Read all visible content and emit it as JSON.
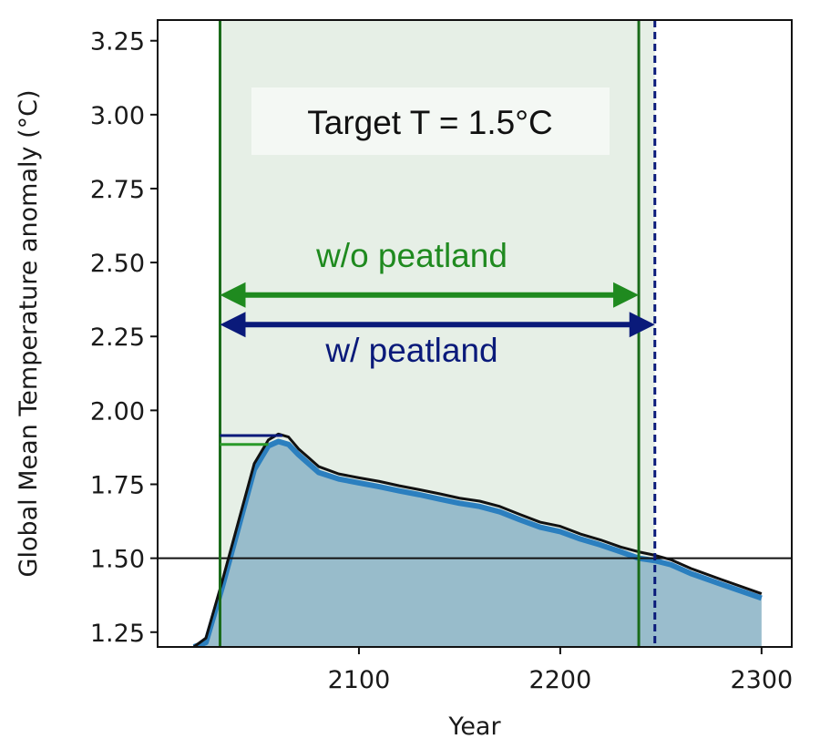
{
  "chart_data": {
    "type": "area",
    "title": "",
    "xlabel": "Year",
    "ylabel": "Global Mean Temperature anomaly (°C)",
    "xlim": [
      2000,
      2315
    ],
    "ylim": [
      1.2,
      3.32
    ],
    "xticks": [
      2100,
      2200,
      2300
    ],
    "xtick_labels": [
      "2100",
      "2200",
      "2300"
    ],
    "yticks": [
      1.25,
      1.5,
      1.75,
      2.0,
      2.25,
      2.5,
      2.75,
      3.0,
      3.25
    ],
    "ytick_labels": [
      "1.25",
      "1.50",
      "1.75",
      "2.00",
      "2.25",
      "2.50",
      "2.75",
      "3.00",
      "3.25"
    ],
    "target_line": 1.5,
    "series": [
      {
        "name": "w/ peatland",
        "color": "#111111",
        "x": [
          2018,
          2024,
          2032,
          2040,
          2048,
          2055,
          2060,
          2065,
          2070,
          2075,
          2080,
          2090,
          2100,
          2110,
          2120,
          2130,
          2140,
          2150,
          2160,
          2170,
          2180,
          2190,
          2200,
          2210,
          2220,
          2230,
          2240,
          2247,
          2255,
          2265,
          2280,
          2300
        ],
        "y": [
          1.2,
          1.23,
          1.42,
          1.62,
          1.82,
          1.9,
          1.92,
          1.91,
          1.87,
          1.84,
          1.81,
          1.785,
          1.772,
          1.76,
          1.745,
          1.732,
          1.718,
          1.703,
          1.693,
          1.675,
          1.648,
          1.622,
          1.608,
          1.582,
          1.562,
          1.538,
          1.52,
          1.51,
          1.495,
          1.465,
          1.428,
          1.38
        ]
      },
      {
        "name": "w/o peatland",
        "color": "#2b7fbf",
        "x": [
          2018,
          2024,
          2032,
          2040,
          2048,
          2055,
          2060,
          2065,
          2070,
          2075,
          2080,
          2090,
          2100,
          2110,
          2120,
          2130,
          2140,
          2150,
          2160,
          2170,
          2180,
          2190,
          2200,
          2210,
          2220,
          2230,
          2239,
          2247,
          2255,
          2265,
          2280,
          2300
        ],
        "y": [
          1.2,
          1.215,
          1.4,
          1.6,
          1.8,
          1.88,
          1.895,
          1.885,
          1.85,
          1.82,
          1.79,
          1.768,
          1.755,
          1.742,
          1.728,
          1.715,
          1.7,
          1.686,
          1.675,
          1.657,
          1.63,
          1.605,
          1.59,
          1.565,
          1.545,
          1.522,
          1.5,
          1.492,
          1.478,
          1.448,
          1.412,
          1.365
        ]
      }
    ],
    "vertical_lines": [
      {
        "name": "start",
        "x": 2031,
        "color": "#1a6b1a",
        "style": "solid"
      },
      {
        "name": "w/o peatland end",
        "x": 2239,
        "color": "#1a6b1a",
        "style": "solid"
      },
      {
        "name": "w/ peatland end",
        "x": 2247,
        "color": "#0a1a7a",
        "style": "dashed"
      }
    ],
    "shaded_region": {
      "x_start": 2031,
      "x_end": 2247,
      "color": "#e6efe6"
    },
    "peak_markers": [
      {
        "name": "w/ peatland peak",
        "x_start": 2031,
        "x_end": 2062,
        "y": 1.915,
        "color": "#0a1a7a"
      },
      {
        "name": "w/o peatland peak",
        "x_start": 2031,
        "x_end": 2055,
        "y": 1.885,
        "color": "#2a9a2a"
      }
    ],
    "annotations": {
      "box_label": "Target T = 1.5°C",
      "green_arrow": {
        "label": "w/o peatland",
        "x_start": 2031,
        "x_end": 2239,
        "y": 2.39,
        "color": "#1f8a1f"
      },
      "blue_arrow": {
        "label": "w/ peatland",
        "x_start": 2031,
        "x_end": 2247,
        "y": 2.29,
        "color": "#0a1a7a"
      }
    }
  }
}
